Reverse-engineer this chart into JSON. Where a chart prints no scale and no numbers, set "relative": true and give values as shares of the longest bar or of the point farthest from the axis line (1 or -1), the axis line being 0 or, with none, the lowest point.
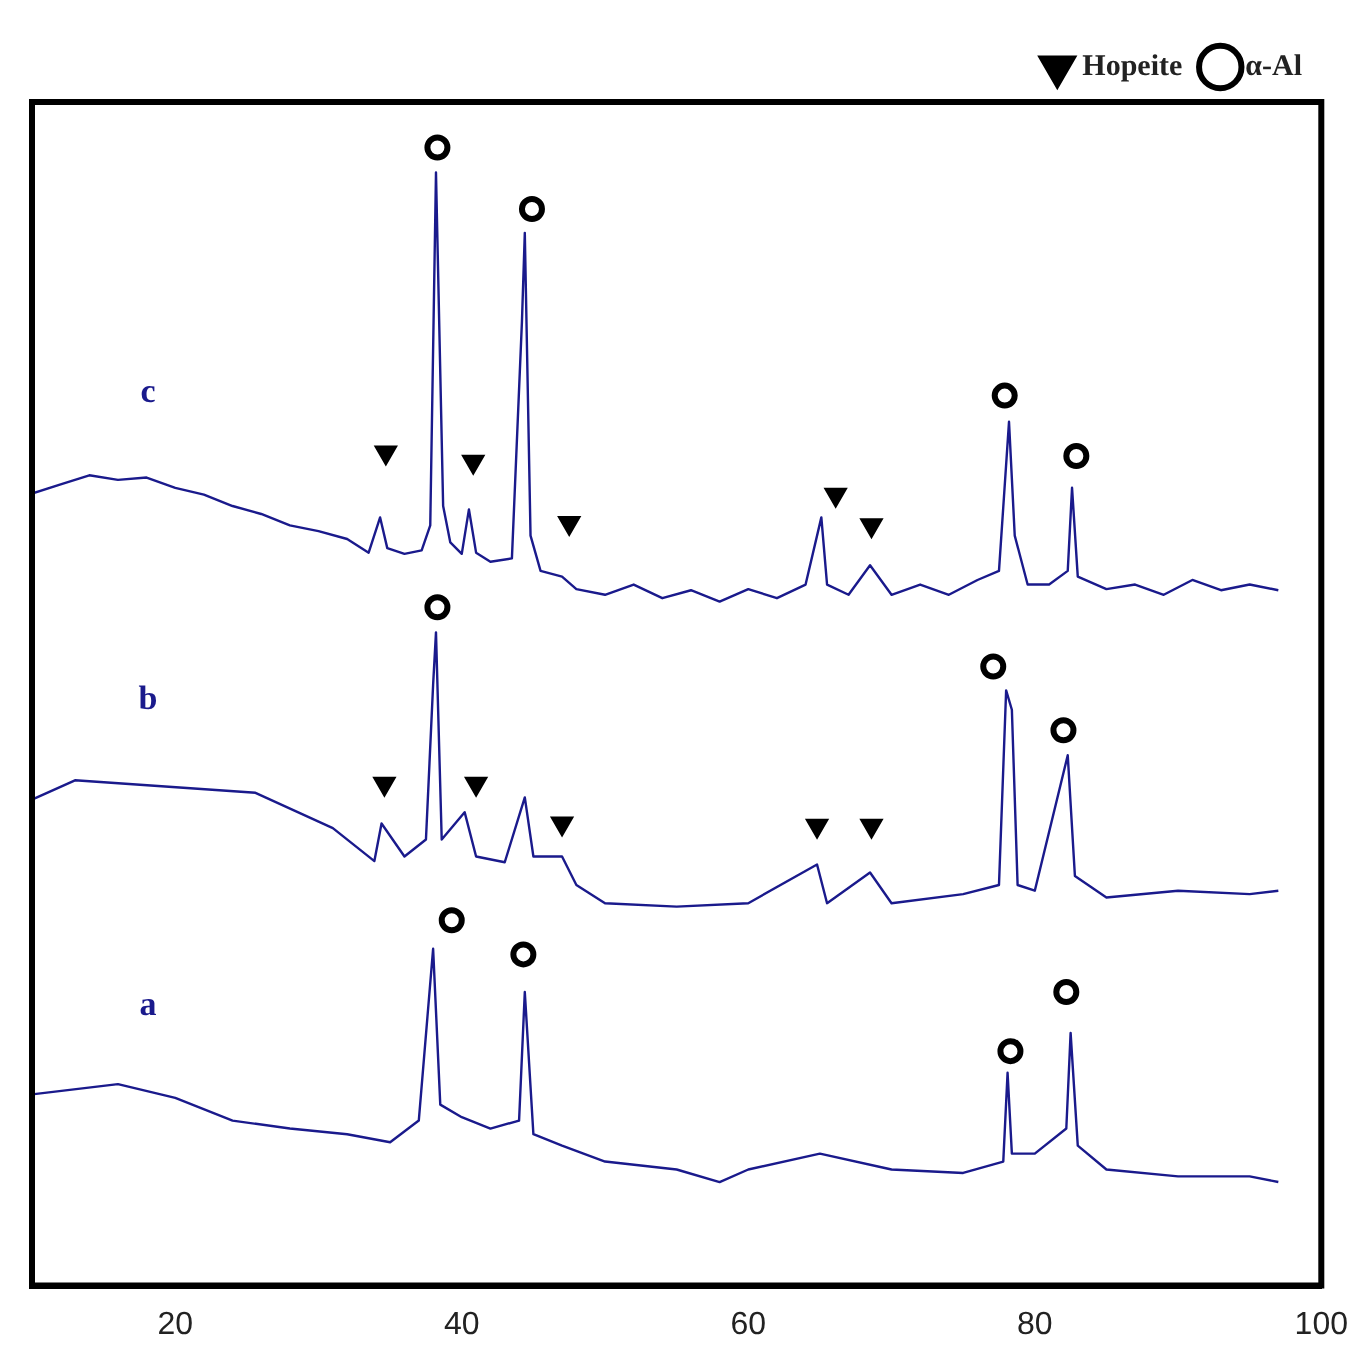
{
  "chart_data": {
    "type": "line",
    "relative": true,
    "xlim": [
      10,
      100
    ],
    "xticks": [
      20,
      40,
      60,
      80,
      100
    ],
    "tick_labels": "x",
    "grid": false,
    "legend": "top right",
    "line_style": "solid",
    "marker": "none",
    "series": [
      {
        "name": "c",
        "color": "#1a1a8c",
        "x": [
          10,
          12,
          14,
          16,
          18,
          20,
          22,
          24,
          26,
          28,
          30,
          32,
          33.5,
          34.3,
          34.8,
          36,
          37.2,
          37.8,
          38.2,
          38.7,
          39.2,
          40,
          40.5,
          41,
          42,
          43.5,
          44.2,
          44.4,
          44.8,
          45.5,
          47,
          48,
          50,
          52,
          54,
          56,
          58,
          60,
          62,
          64,
          65.1,
          65.5,
          67,
          68.5,
          70,
          72,
          74,
          76,
          77.5,
          78.2,
          78.6,
          79.5,
          81,
          82.3,
          82.6,
          83,
          85,
          87,
          89,
          91,
          93,
          95,
          97
        ],
        "values": [
          0.696,
          0.704,
          0.712,
          0.708,
          0.71,
          0.701,
          0.695,
          0.685,
          0.678,
          0.668,
          0.663,
          0.656,
          0.644,
          0.675,
          0.648,
          0.643,
          0.646,
          0.668,
          0.978,
          0.685,
          0.653,
          0.643,
          0.682,
          0.644,
          0.636,
          0.639,
          0.847,
          0.925,
          0.659,
          0.628,
          0.623,
          0.612,
          0.607,
          0.616,
          0.604,
          0.611,
          0.601,
          0.612,
          0.604,
          0.616,
          0.675,
          0.616,
          0.607,
          0.633,
          0.607,
          0.616,
          0.607,
          0.62,
          0.628,
          0.759,
          0.659,
          0.616,
          0.616,
          0.628,
          0.701,
          0.623,
          0.612,
          0.616,
          0.607,
          0.62,
          0.611,
          0.616,
          0.611
        ]
      },
      {
        "name": "b",
        "color": "#1a1a8c",
        "x": [
          10,
          13,
          25.6,
          31,
          33.9,
          34.4,
          36,
          37.5,
          38,
          38.2,
          38.6,
          40.2,
          41,
          43,
          44.4,
          45,
          47,
          48,
          50,
          55,
          60,
          64.8,
          65.5,
          68.5,
          70,
          75,
          77.5,
          78,
          78.4,
          78.8,
          80,
          82.3,
          82.8,
          85,
          90,
          95,
          97
        ],
        "values": [
          0.427,
          0.444,
          0.433,
          0.402,
          0.373,
          0.406,
          0.377,
          0.392,
          0.528,
          0.574,
          0.392,
          0.416,
          0.377,
          0.372,
          0.429,
          0.377,
          0.377,
          0.352,
          0.336,
          0.333,
          0.336,
          0.37,
          0.336,
          0.363,
          0.336,
          0.344,
          0.352,
          0.523,
          0.506,
          0.352,
          0.347,
          0.466,
          0.36,
          0.341,
          0.347,
          0.344,
          0.347
        ]
      },
      {
        "name": "a",
        "color": "#1a1a8c",
        "x": [
          10,
          16,
          20,
          24,
          28,
          32,
          35,
          37,
          38,
          38.5,
          40,
          42,
          44,
          44.4,
          45,
          47,
          50,
          55,
          58,
          60,
          65,
          70,
          75,
          77.8,
          78.1,
          78.4,
          80,
          82.2,
          82.5,
          83,
          85,
          90,
          95,
          97
        ],
        "values": [
          0.168,
          0.177,
          0.165,
          0.145,
          0.138,
          0.133,
          0.126,
          0.145,
          0.296,
          0.159,
          0.148,
          0.138,
          0.145,
          0.258,
          0.133,
          0.123,
          0.109,
          0.102,
          0.091,
          0.102,
          0.116,
          0.102,
          0.099,
          0.109,
          0.187,
          0.116,
          0.116,
          0.138,
          0.222,
          0.123,
          0.102,
          0.096,
          0.096,
          0.091
        ]
      },
      {
        "name": "Hopeite",
        "type": "scatter",
        "marker": "triangle",
        "color": "#000000",
        "x": [
          34.7,
          40.8,
          47.5,
          66.1,
          68.6,
          34.6,
          41,
          47,
          64.8,
          68.6
        ],
        "values": [
          0.732,
          0.724,
          0.67,
          0.695,
          0.668,
          0.441,
          0.441,
          0.406,
          0.404,
          0.404
        ]
      },
      {
        "name": "α-Al",
        "type": "scatter",
        "marker": "circle",
        "color": "#000000",
        "x": [
          38.3,
          44.9,
          77.9,
          82.9,
          38.3,
          77.1,
          82,
          39.3,
          44.3,
          78.3,
          82.2
        ],
        "values": [
          1.0,
          0.946,
          0.782,
          0.729,
          0.596,
          0.544,
          0.488,
          0.321,
          0.291,
          0.206,
          0.258
        ]
      }
    ]
  }
}
